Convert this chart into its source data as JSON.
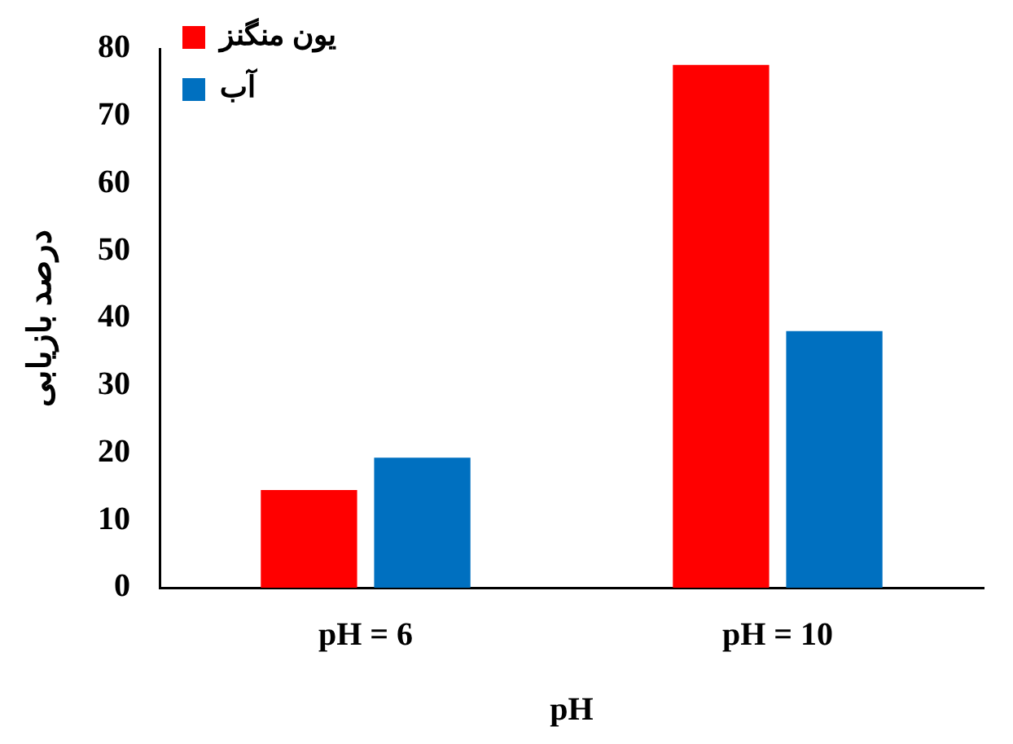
{
  "chart_data": {
    "type": "bar",
    "xlabel": "pH",
    "ylabel": "درصد بازیابی",
    "categories": [
      "pH = 6",
      "pH = 10"
    ],
    "series": [
      {
        "name": "یون منگنز",
        "color": "#ff0000",
        "values": [
          14.5,
          77.6
        ]
      },
      {
        "name": "آب",
        "color": "#0070c0",
        "values": [
          19.3,
          38.1
        ]
      }
    ],
    "ylim": [
      0,
      80
    ],
    "yticks": [
      0,
      10,
      20,
      30,
      40,
      50,
      60,
      70,
      80
    ],
    "grid": false,
    "legend": "top left"
  }
}
